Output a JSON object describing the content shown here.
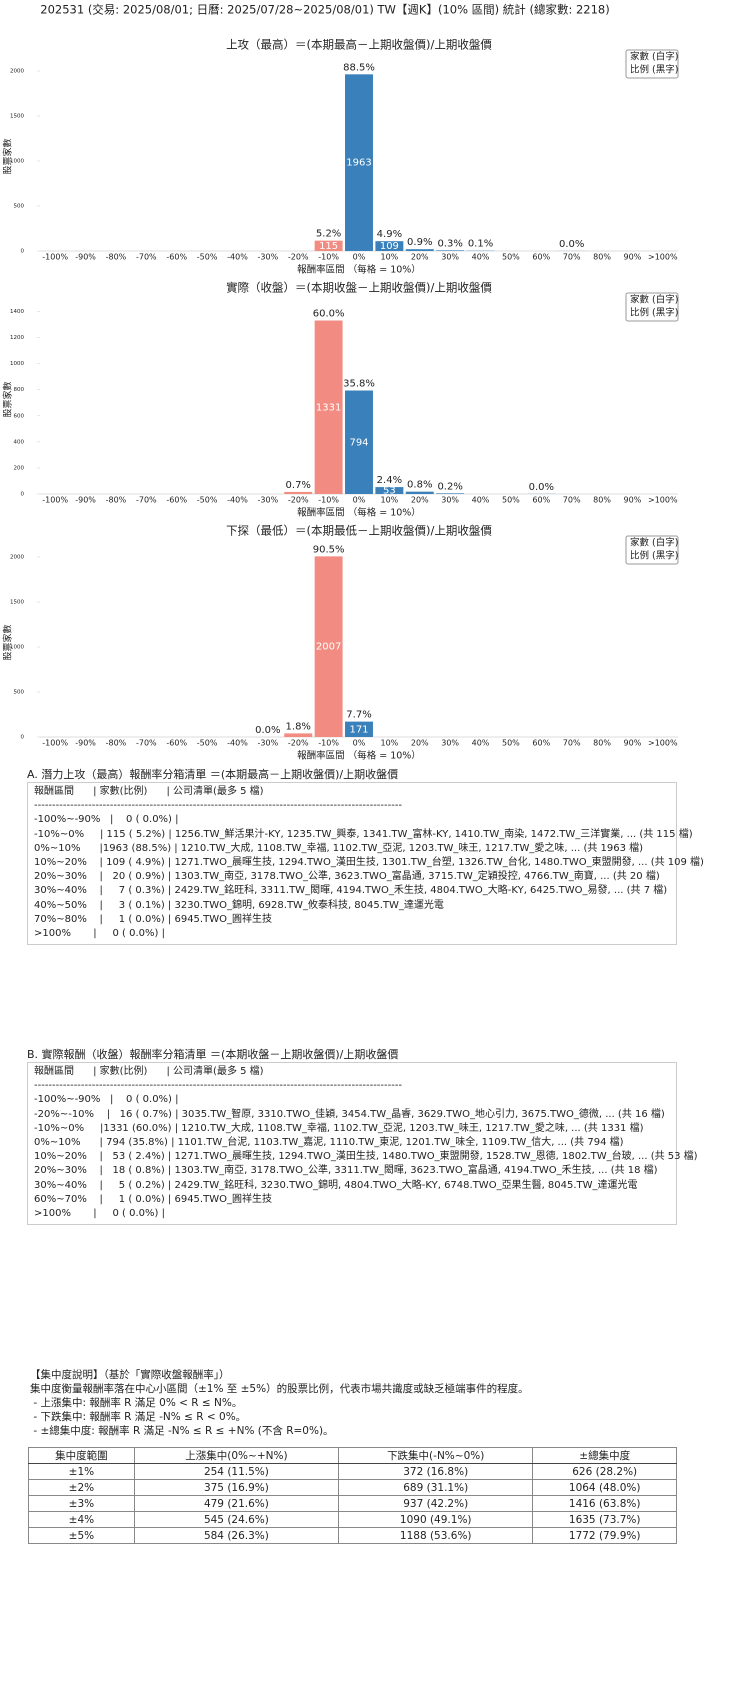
{
  "header": {
    "title": "202531 (交易: 2025/08/01; 日曆: 2025/07/28~2025/08/01) TW【週K】(10% 區間) 統計 (總家數: 2218)"
  },
  "chart_data": [
    {
      "type": "bar",
      "title": "上攻（最高）＝(本期最高－上期收盤價)/上期收盤價",
      "xlabel": "報酬率區間 （每格 = 10%）",
      "ylabel": "股票家數",
      "legend": [
        "家數 (白字)",
        "比例 (黑字)"
      ],
      "legend_position": "upper right",
      "categories": [
        "-100%",
        "-90%",
        "-80%",
        "-70%",
        "-60%",
        "-50%",
        "-40%",
        "-30%",
        "-20%",
        "-10%",
        "0%",
        "10%",
        "20%",
        "30%",
        "40%",
        "50%",
        "60%",
        "70%",
        "80%",
        "90%",
        ">100%"
      ],
      "values": [
        null,
        null,
        null,
        null,
        null,
        null,
        null,
        null,
        null,
        115,
        1963,
        109,
        20,
        7,
        3,
        null,
        null,
        1,
        null,
        null,
        null
      ],
      "percent_labels": [
        null,
        null,
        null,
        null,
        null,
        null,
        null,
        null,
        null,
        "5.2%",
        "88.5%",
        "4.9%",
        "0.9%",
        "0.3%",
        "0.1%",
        null,
        null,
        "0.0%",
        null,
        null,
        null
      ],
      "colors": [
        "#f28c82",
        "#f28c82",
        "#f28c82",
        "#f28c82",
        "#f28c82",
        "#f28c82",
        "#f28c82",
        "#f28c82",
        "#f28c82",
        "#f28c82",
        "#3a80ba",
        "#3a80ba",
        "#3a80ba",
        "#3a80ba",
        "#3a80ba",
        "#3a80ba",
        "#3a80ba",
        "#3a80ba",
        "#3a80ba",
        "#3a80ba",
        "#3a80ba"
      ],
      "ylim": [
        0,
        2100
      ],
      "yticks": [
        0,
        500,
        1000,
        1500,
        2000
      ]
    },
    {
      "type": "bar",
      "title": "實際（收盤）＝(本期收盤－上期收盤價)/上期收盤價",
      "xlabel": "報酬率區間 （每格 = 10%）",
      "ylabel": "股票家數",
      "legend": [
        "家數 (白字)",
        "比例 (黑字)"
      ],
      "legend_position": "upper right",
      "categories": [
        "-100%",
        "-90%",
        "-80%",
        "-70%",
        "-60%",
        "-50%",
        "-40%",
        "-30%",
        "-20%",
        "-10%",
        "0%",
        "10%",
        "20%",
        "30%",
        "40%",
        "50%",
        "60%",
        "70%",
        "80%",
        "90%",
        ">100%"
      ],
      "values": [
        null,
        null,
        null,
        null,
        null,
        null,
        null,
        null,
        16,
        1331,
        794,
        53,
        18,
        5,
        null,
        null,
        1,
        null,
        null,
        null,
        null
      ],
      "percent_labels": [
        null,
        null,
        null,
        null,
        null,
        null,
        null,
        null,
        "0.7%",
        "60.0%",
        "35.8%",
        "2.4%",
        "0.8%",
        "0.2%",
        null,
        null,
        "0.0%",
        null,
        null,
        null,
        null
      ],
      "colors": [
        "#f28c82",
        "#f28c82",
        "#f28c82",
        "#f28c82",
        "#f28c82",
        "#f28c82",
        "#f28c82",
        "#f28c82",
        "#f28c82",
        "#f28c82",
        "#3a80ba",
        "#3a80ba",
        "#3a80ba",
        "#3a80ba",
        "#3a80ba",
        "#3a80ba",
        "#3a80ba",
        "#3a80ba",
        "#3a80ba",
        "#3a80ba",
        "#3a80ba"
      ],
      "ylim": [
        0,
        1450
      ],
      "yticks": [
        0,
        200,
        400,
        600,
        800,
        1000,
        1200,
        1400
      ]
    },
    {
      "type": "bar",
      "title": "下探（最低）＝(本期最低－上期收盤價)/上期收盤價",
      "xlabel": "報酬率區間 （每格 = 10%）",
      "ylabel": "股票家數",
      "legend": [
        "家數 (白字)",
        "比例 (黑字)"
      ],
      "legend_position": "upper right",
      "categories": [
        "-100%",
        "-90%",
        "-80%",
        "-70%",
        "-60%",
        "-50%",
        "-40%",
        "-30%",
        "-20%",
        "-10%",
        "0%",
        "10%",
        "20%",
        "30%",
        "40%",
        "50%",
        "60%",
        "70%",
        "80%",
        "90%",
        ">100%"
      ],
      "values": [
        null,
        null,
        null,
        null,
        null,
        null,
        null,
        0,
        40,
        2007,
        171,
        null,
        null,
        null,
        null,
        null,
        null,
        null,
        null,
        null,
        null
      ],
      "percent_labels": [
        null,
        null,
        null,
        null,
        null,
        null,
        null,
        "0.0%",
        "1.8%",
        "90.5%",
        "7.7%",
        null,
        null,
        null,
        null,
        null,
        null,
        null,
        null,
        null,
        null
      ],
      "colors": [
        "#f28c82",
        "#f28c82",
        "#f28c82",
        "#f28c82",
        "#f28c82",
        "#f28c82",
        "#f28c82",
        "#f28c82",
        "#f28c82",
        "#f28c82",
        "#3a80ba",
        "#3a80ba",
        "#3a80ba",
        "#3a80ba",
        "#3a80ba",
        "#3a80ba",
        "#3a80ba",
        "#3a80ba",
        "#3a80ba",
        "#3a80ba",
        "#3a80ba"
      ],
      "ylim": [
        0,
        2100
      ],
      "yticks": [
        0,
        500,
        1000,
        1500,
        2000
      ]
    }
  ],
  "section_a": {
    "title": "A. 潛力上攻（最高）報酬率分箱清單 ＝(本期最高－上期收盤價)/上期收盤價",
    "lines": [
      "報酬區間      | 家數(比例)      | 公司清單(最多 5 檔)",
      "------------------------------------------------------------------------------------------------------",
      "-100%~-90%   |    0 ( 0.0%) |",
      "-10%~0%     | 115 ( 5.2%) | 1256.TW_鮮活果汁-KY, 1235.TW_興泰, 1341.TW_富林-KY, 1410.TW_南染, 1472.TW_三洋實業, ... (共 115 檔)",
      "0%~10%      |1963 (88.5%) | 1210.TW_大成, 1108.TW_幸福, 1102.TW_亞泥, 1203.TW_味王, 1217.TW_愛之味, ... (共 1963 檔)",
      "10%~20%    | 109 ( 4.9%) | 1271.TWO_晨暉生技, 1294.TWO_漢田生技, 1301.TW_台塑, 1326.TW_台化, 1480.TWO_東盟開發, ... (共 109 檔)",
      "20%~30%    |   20 ( 0.9%) | 1303.TW_南亞, 3178.TWO_公準, 3623.TWO_富晶通, 3715.TW_定穎投控, 4766.TW_南寶, ... (共 20 檔)",
      "30%~40%    |     7 ( 0.3%) | 2429.TW_銘旺科, 3311.TW_閎暉, 4194.TWO_禾生技, 4804.TWO_大略-KY, 6425.TWO_易發, ... (共 7 檔)",
      "40%~50%    |     3 ( 0.1%) | 3230.TWO_錦明, 6928.TW_攸泰科技, 8045.TW_達運光電",
      "70%~80%    |     1 ( 0.0%) | 6945.TWO_圓祥生技",
      ">100%       |     0 ( 0.0%) |"
    ]
  },
  "section_b": {
    "title": "B. 實際報酬（收盤）報酬率分箱清單 ＝(本期收盤－上期收盤價)/上期收盤價",
    "lines": [
      "報酬區間      | 家數(比例)      | 公司清單(最多 5 檔)",
      "------------------------------------------------------------------------------------------------------",
      "-100%~-90%   |    0 ( 0.0%) |",
      "-20%~-10%    |   16 ( 0.7%) | 3035.TW_智原, 3310.TWO_佳穎, 3454.TW_晶睿, 3629.TWO_地心引力, 3675.TWO_德微, ... (共 16 檔)",
      "-10%~0%     |1331 (60.0%) | 1210.TW_大成, 1108.TW_幸福, 1102.TW_亞泥, 1203.TW_味王, 1217.TW_愛之味, ... (共 1331 檔)",
      "0%~10%      | 794 (35.8%) | 1101.TW_台泥, 1103.TW_嘉泥, 1110.TW_東泥, 1201.TW_味全, 1109.TW_信大, ... (共 794 檔)",
      "10%~20%    |   53 ( 2.4%) | 1271.TWO_晨暉生技, 1294.TWO_漢田生技, 1480.TWO_東盟開發, 1528.TW_恩德, 1802.TW_台玻, ... (共 53 檔)",
      "20%~30%    |   18 ( 0.8%) | 1303.TW_南亞, 3178.TWO_公準, 3311.TW_閎暉, 3623.TWO_富晶通, 4194.TWO_禾生技, ... (共 18 檔)",
      "30%~40%    |     5 ( 0.2%) | 2429.TW_銘旺科, 3230.TWO_錦明, 4804.TWO_大略-KY, 6748.TWO_亞果生醫, 8045.TW_達運光電",
      "60%~70%    |     1 ( 0.0%) | 6945.TWO_圓祥生技",
      ">100%       |     0 ( 0.0%) |"
    ]
  },
  "concentration": {
    "title": "【集中度說明】（基於「實際收盤報酬率」）",
    "lines": [
      "集中度衡量報酬率落在中心小區間（±1% 至 ±5%）的股票比例，代表市場共識度或缺乏極端事件的程度。",
      " - 上漲集中: 報酬率 R 滿足 0% < R ≤ N%。",
      " - 下跌集中: 報酬率 R 滿足 -N% ≤ R < 0%。",
      " - ±總集中度: 報酬率 R 滿足 -N% ≤ R ≤ +N% (不含 R=0%)。"
    ],
    "table": {
      "columns": [
        "集中度範圍",
        "上漲集中(0%~+N%)",
        "下跌集中(-N%~0%)",
        "±總集中度"
      ],
      "rows": [
        [
          "±1%",
          "254 (11.5%)",
          "372 (16.8%)",
          "626 (28.2%)"
        ],
        [
          "±2%",
          "375 (16.9%)",
          "689 (31.1%)",
          "1064 (48.0%)"
        ],
        [
          "±3%",
          "479 (21.6%)",
          "937 (42.2%)",
          "1416 (63.8%)"
        ],
        [
          "±4%",
          "545 (24.6%)",
          "1090 (49.1%)",
          "1635 (73.7%)"
        ],
        [
          "±5%",
          "584 (26.3%)",
          "1188 (53.6%)",
          "1772 (79.9%)"
        ]
      ]
    }
  }
}
